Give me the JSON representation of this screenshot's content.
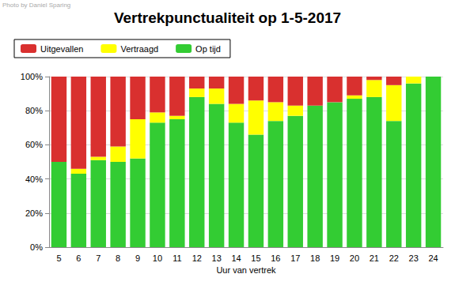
{
  "chart_data": {
    "type": "bar",
    "title": "Vertrekpunctualiteit op 1-5-2017",
    "x_label": "Uur van vertrek",
    "annotations": [
      "Photo by Daniel Sparing"
    ],
    "categories": [
      "5",
      "6",
      "7",
      "8",
      "9",
      "10",
      "11",
      "12",
      "13",
      "14",
      "15",
      "16",
      "17",
      "18",
      "19",
      "20",
      "21",
      "22",
      "23",
      "24"
    ],
    "series": [
      {
        "name": "Uitgevallen",
        "color": "#d9302f",
        "values": [
          50,
          54,
          47,
          41,
          25,
          21,
          23,
          7,
          7,
          16,
          14,
          15,
          17,
          17,
          15,
          11,
          2,
          5,
          0,
          0
        ]
      },
      {
        "name": "Vertraagd",
        "color": "#ffff00",
        "values": [
          0,
          3,
          2,
          9,
          23,
          6,
          2,
          5,
          9,
          11,
          20,
          11,
          6,
          0,
          0,
          2,
          10,
          21,
          4,
          0
        ]
      },
      {
        "name": "Op tijd",
        "color": "#33cc33",
        "values": [
          50,
          43,
          51,
          50,
          52,
          73,
          75,
          88,
          84,
          73,
          66,
          74,
          77,
          83,
          85,
          87,
          88,
          74,
          96,
          100
        ]
      }
    ],
    "ylim": [
      0,
      100
    ],
    "yticks": [
      {
        "value": 0,
        "label": "0%"
      },
      {
        "value": 20,
        "label": "20%"
      },
      {
        "value": 40,
        "label": "40%"
      },
      {
        "value": 60,
        "label": "60%"
      },
      {
        "value": 80,
        "label": "80%"
      },
      {
        "value": 100,
        "label": "100%"
      }
    ],
    "stacked": true,
    "grid": true,
    "legend": "top-left"
  }
}
